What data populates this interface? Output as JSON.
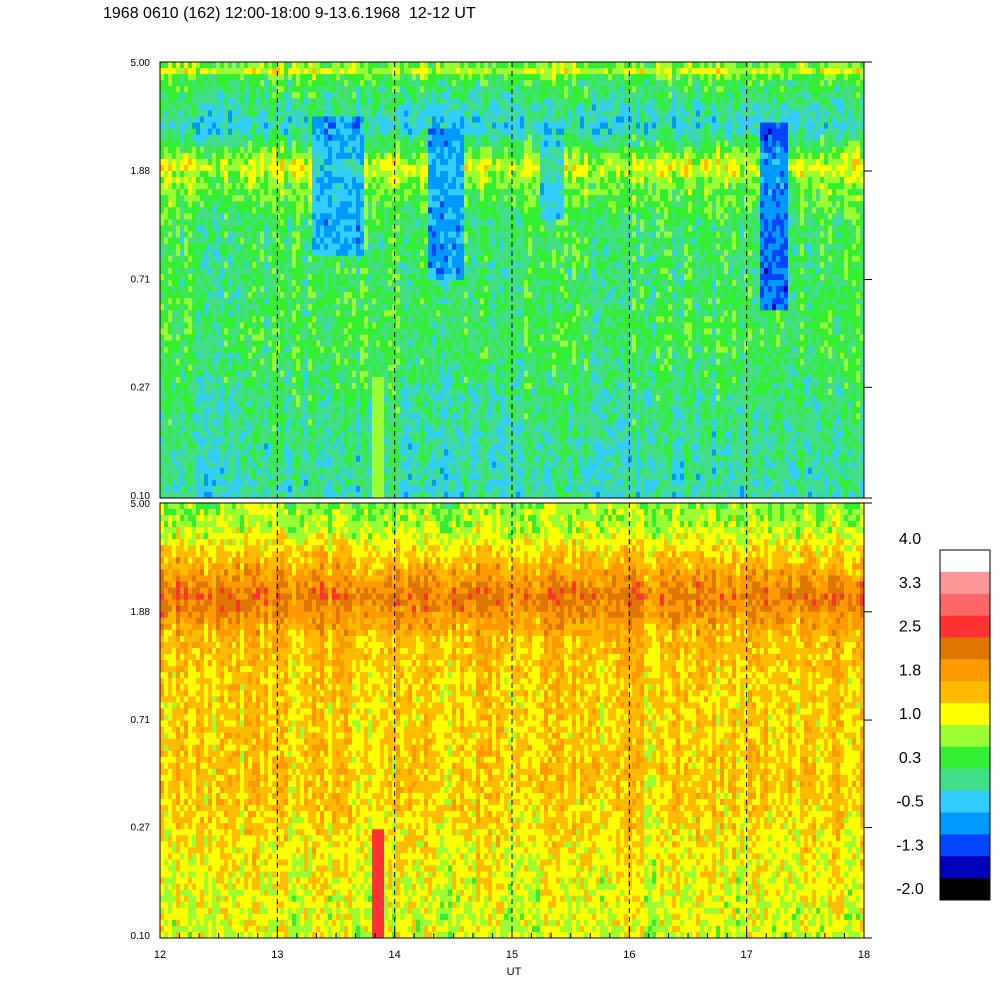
{
  "title": "1968 0610 (162) 12:00-18:00 9-13.6.1968  12-12 UT",
  "chart_data": [
    {
      "type": "heatmap",
      "panel": "upper",
      "x_range": [
        12,
        18
      ],
      "y_scale": "log",
      "y_range": [
        0.1,
        5.0
      ],
      "y_ticks": [
        "0.10",
        "0.27",
        "0.71",
        "1.88",
        "5.00"
      ],
      "band_levels": [
        {
          "freq": 5.0,
          "level": 0.5
        },
        {
          "freq": 4.6,
          "level": 1.0
        },
        {
          "freq": 4.3,
          "level": 0.4
        },
        {
          "freq": 2.8,
          "level": -0.2
        },
        {
          "freq": 2.2,
          "level": 0.6
        },
        {
          "freq": 1.95,
          "level": 1.15
        },
        {
          "freq": 1.7,
          "level": 0.7
        },
        {
          "freq": 1.2,
          "level": 0.3
        },
        {
          "freq": 0.7,
          "level": 0.25
        },
        {
          "freq": 0.4,
          "level": 0.35
        },
        {
          "freq": 0.25,
          "level": 0.15
        },
        {
          "freq": 0.1,
          "level": -0.05
        }
      ],
      "depletions": [
        {
          "t_start": 13.3,
          "t_end": 13.75,
          "f_low": 0.9,
          "f_high": 3.0,
          "level": -0.9
        },
        {
          "t_start": 14.3,
          "t_end": 14.6,
          "f_low": 0.7,
          "f_high": 2.8,
          "level": -1.0
        },
        {
          "t_start": 15.25,
          "t_end": 15.45,
          "f_low": 1.2,
          "f_high": 2.8,
          "level": -0.6
        },
        {
          "t_start": 17.1,
          "t_end": 17.35,
          "f_low": 0.55,
          "f_high": 2.9,
          "level": -1.4
        }
      ],
      "enhancements": [
        {
          "t_start": 13.8,
          "t_end": 13.9,
          "f_low": 0.1,
          "f_high": 0.3,
          "level": 1.0
        }
      ]
    },
    {
      "type": "heatmap",
      "panel": "lower",
      "x_range": [
        12,
        18
      ],
      "y_scale": "log",
      "y_range": [
        0.1,
        5.0
      ],
      "y_ticks": [
        "0.10",
        "0.27",
        "0.71",
        "1.88",
        "5.00"
      ],
      "band_levels": [
        {
          "freq": 5.0,
          "level": 0.7
        },
        {
          "freq": 4.0,
          "level": 0.9
        },
        {
          "freq": 3.2,
          "level": 1.4
        },
        {
          "freq": 2.5,
          "level": 1.95
        },
        {
          "freq": 2.15,
          "level": 2.25
        },
        {
          "freq": 1.85,
          "level": 2.0
        },
        {
          "freq": 1.5,
          "level": 1.6
        },
        {
          "freq": 1.0,
          "level": 1.45
        },
        {
          "freq": 0.71,
          "level": 1.4
        },
        {
          "freq": 0.4,
          "level": 1.5
        },
        {
          "freq": 0.2,
          "level": 1.2
        },
        {
          "freq": 0.1,
          "level": 1.0
        }
      ],
      "enhancements": [
        {
          "t_start": 13.8,
          "t_end": 13.9,
          "f_low": 0.1,
          "f_high": 0.27,
          "level": 2.6
        }
      ]
    }
  ],
  "x_axis": {
    "label": "UT",
    "ticks": [
      "12",
      "13",
      "14",
      "15",
      "16",
      "17",
      "18"
    ],
    "dashed_lines": [
      13,
      14,
      15,
      16,
      17
    ]
  },
  "colorbar": {
    "tick_labels": [
      "4.0",
      "3.3",
      "2.5",
      "1.8",
      "1.0",
      "0.3",
      "-0.5",
      "-1.3",
      "-2.0"
    ],
    "colors": [
      "#ffffff",
      "#ff9999",
      "#ff6666",
      "#ff3333",
      "#dd7700",
      "#ff9900",
      "#ffbb00",
      "#ffff00",
      "#99ff33",
      "#33ee33",
      "#44dd88",
      "#33ccff",
      "#0099ff",
      "#0044ff",
      "#0000bb",
      "#000000"
    ]
  }
}
